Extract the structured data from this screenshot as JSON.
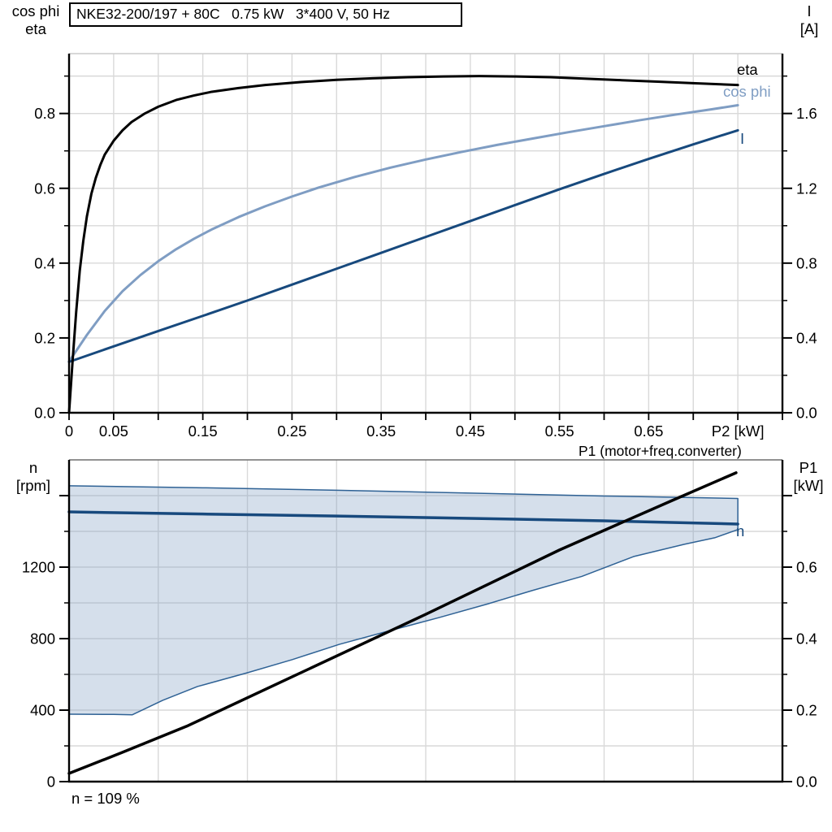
{
  "title_box": "NKE32-200/197 + 80C   0.75 kW   3*400 V, 50 Hz",
  "labels": {
    "top_left_line1": "cos phi",
    "top_left_line2": "eta",
    "top_right_line1": "I",
    "top_right_line2": "[A]",
    "bottom_left_line1": "n",
    "bottom_left_line2": "[rpm]",
    "bottom_right_line1": "P1",
    "bottom_right_line2": "[kW]",
    "p1_curve_title": "P1 (motor+freq.converter)",
    "speed_note": "n = 109 %",
    "curve_eta": "eta",
    "curve_cos_phi": "cos phi",
    "curve_current": "I",
    "curve_speed": "n"
  },
  "colors": {
    "eta_curve": "#000000",
    "cos_phi_curve": "#7f9dc3",
    "current_curve": "#17497d",
    "speed_curve": "#17497d",
    "p1_curve": "#000000",
    "envelope_stroke": "#2f6295",
    "envelope_fill": "#7d9cc0",
    "grid": "#d9d9d9",
    "axis": "#000000"
  },
  "chart_data": [
    {
      "id": "top-chart",
      "type": "line",
      "title": "NKE32-200/197 + 80C  0.75 kW  3*400 V, 50 Hz",
      "x_axis": {
        "label": "P2 [kW]",
        "range": [
          0,
          0.8
        ],
        "grid": [
          0.05,
          0.1,
          0.15,
          0.2,
          0.25,
          0.3,
          0.35,
          0.4,
          0.45,
          0.5,
          0.55,
          0.6,
          0.65,
          0.7,
          0.75
        ],
        "ticks": [
          0,
          0.05,
          0.1,
          0.15,
          0.2,
          0.25,
          0.3,
          0.35,
          0.4,
          0.45,
          0.5,
          0.55,
          0.6,
          0.65,
          0.7,
          0.75,
          0.8
        ],
        "tick_labels": [
          {
            "v": 0,
            "l": "0"
          },
          {
            "v": 0.05,
            "l": "0.05"
          },
          {
            "v": 0.15,
            "l": "0.15"
          },
          {
            "v": 0.25,
            "l": "0.25"
          },
          {
            "v": 0.35,
            "l": "0.35"
          },
          {
            "v": 0.45,
            "l": "0.45"
          },
          {
            "v": 0.55,
            "l": "0.55"
          },
          {
            "v": 0.65,
            "l": "0.65"
          },
          {
            "v": 0.75,
            "l": "P2 [kW]"
          }
        ]
      },
      "y_left": {
        "title": "cos phi / eta",
        "range": [
          0,
          0.96
        ],
        "grid": [
          0.1,
          0.2,
          0.3,
          0.4,
          0.5,
          0.6,
          0.7,
          0.8,
          0.9
        ],
        "major_ticks": [
          {
            "v": 0,
            "l": "0.0"
          },
          {
            "v": 0.2,
            "l": "0.2"
          },
          {
            "v": 0.4,
            "l": "0.4"
          },
          {
            "v": 0.6,
            "l": "0.6"
          },
          {
            "v": 0.8,
            "l": "0.8"
          }
        ],
        "minor_ticks": [
          0.1,
          0.3,
          0.5,
          0.7,
          0.9
        ]
      },
      "y_right": {
        "title": "I [A]",
        "range": [
          0,
          1.92
        ],
        "major_ticks": [
          {
            "v": 0,
            "l": "0.0"
          },
          {
            "v": 0.4,
            "l": "0.4"
          },
          {
            "v": 0.8,
            "l": "0.8"
          },
          {
            "v": 1.2,
            "l": "1.2"
          },
          {
            "v": 1.6,
            "l": "1.6"
          }
        ],
        "minor_ticks": [
          0.2,
          0.6,
          1.0,
          1.4,
          1.8
        ]
      },
      "series": [
        {
          "name": "cos-phi",
          "axis": "left",
          "color_key": "cos_phi_curve",
          "width": 3,
          "points": [
            [
              0,
              0.137
            ],
            [
              0.02,
              0.208
            ],
            [
              0.04,
              0.272
            ],
            [
              0.06,
              0.325
            ],
            [
              0.08,
              0.368
            ],
            [
              0.1,
              0.405
            ],
            [
              0.12,
              0.437
            ],
            [
              0.14,
              0.465
            ],
            [
              0.16,
              0.49
            ],
            [
              0.19,
              0.523
            ],
            [
              0.22,
              0.552
            ],
            [
              0.25,
              0.578
            ],
            [
              0.28,
              0.602
            ],
            [
              0.32,
              0.63
            ],
            [
              0.36,
              0.655
            ],
            [
              0.4,
              0.677
            ],
            [
              0.44,
              0.697
            ],
            [
              0.48,
              0.716
            ],
            [
              0.52,
              0.733
            ],
            [
              0.56,
              0.75
            ],
            [
              0.6,
              0.766
            ],
            [
              0.64,
              0.782
            ],
            [
              0.68,
              0.797
            ],
            [
              0.72,
              0.811
            ],
            [
              0.75,
              0.822
            ]
          ]
        },
        {
          "name": "current",
          "axis": "right",
          "color_key": "current_curve",
          "width": 3,
          "points": [
            [
              0,
              0.272
            ],
            [
              0.05,
              0.355
            ],
            [
              0.1,
              0.437
            ],
            [
              0.15,
              0.518
            ],
            [
              0.2,
              0.6
            ],
            [
              0.25,
              0.685
            ],
            [
              0.3,
              0.77
            ],
            [
              0.35,
              0.855
            ],
            [
              0.4,
              0.94
            ],
            [
              0.45,
              1.025
            ],
            [
              0.5,
              1.11
            ],
            [
              0.55,
              1.195
            ],
            [
              0.6,
              1.277
            ],
            [
              0.65,
              1.357
            ],
            [
              0.7,
              1.435
            ],
            [
              0.75,
              1.51
            ]
          ]
        },
        {
          "name": "eta",
          "axis": "left",
          "color_key": "eta_curve",
          "width": 3,
          "points": [
            [
              0,
              0
            ],
            [
              0.004,
              0.14
            ],
            [
              0.008,
              0.27
            ],
            [
              0.012,
              0.38
            ],
            [
              0.016,
              0.46
            ],
            [
              0.02,
              0.525
            ],
            [
              0.025,
              0.585
            ],
            [
              0.03,
              0.628
            ],
            [
              0.035,
              0.662
            ],
            [
              0.04,
              0.69
            ],
            [
              0.05,
              0.727
            ],
            [
              0.06,
              0.755
            ],
            [
              0.07,
              0.777
            ],
            [
              0.085,
              0.8
            ],
            [
              0.1,
              0.818
            ],
            [
              0.12,
              0.836
            ],
            [
              0.14,
              0.848
            ],
            [
              0.16,
              0.858
            ],
            [
              0.19,
              0.868
            ],
            [
              0.22,
              0.876
            ],
            [
              0.26,
              0.884
            ],
            [
              0.3,
              0.89
            ],
            [
              0.34,
              0.894
            ],
            [
              0.38,
              0.897
            ],
            [
              0.42,
              0.899
            ],
            [
              0.46,
              0.9
            ],
            [
              0.5,
              0.899
            ],
            [
              0.54,
              0.897
            ],
            [
              0.58,
              0.893
            ],
            [
              0.62,
              0.889
            ],
            [
              0.66,
              0.885
            ],
            [
              0.7,
              0.881
            ],
            [
              0.75,
              0.876
            ]
          ]
        }
      ]
    },
    {
      "id": "bottom-chart",
      "type": "line",
      "title": "Speed range and input power",
      "x_axis": {
        "label": "",
        "range": [
          0,
          0.8
        ],
        "grid": [
          0.1,
          0.2,
          0.3,
          0.4,
          0.5,
          0.6,
          0.7
        ],
        "ticks": [],
        "tick_labels": []
      },
      "y_left": {
        "title": "n [rpm]",
        "range": [
          0,
          1800
        ],
        "grid": [
          200,
          400,
          600,
          800,
          1000,
          1200,
          1400,
          1600
        ],
        "major_ticks": [
          {
            "v": 0,
            "l": "0"
          },
          {
            "v": 400,
            "l": "400"
          },
          {
            "v": 800,
            "l": "800"
          },
          {
            "v": 1200,
            "l": "1200"
          },
          {
            "v": 1600,
            "l": ""
          }
        ],
        "minor_ticks": [
          200,
          600,
          1000,
          1400
        ]
      },
      "y_right": {
        "title": "P1 [kW]",
        "range": [
          0,
          0.9
        ],
        "major_ticks": [
          {
            "v": 0,
            "l": "0.0"
          },
          {
            "v": 0.2,
            "l": "0.2"
          },
          {
            "v": 0.4,
            "l": "0.4"
          },
          {
            "v": 0.6,
            "l": "0.6"
          },
          {
            "v": 0.8,
            "l": ""
          }
        ],
        "minor_ticks": [
          0.1,
          0.3,
          0.5,
          0.7
        ]
      },
      "envelope": {
        "name": "speed-operating-range",
        "axis": "left",
        "upper": [
          [
            0,
            1655
          ],
          [
            0.15,
            1644
          ],
          [
            0.3,
            1630
          ],
          [
            0.45,
            1614
          ],
          [
            0.6,
            1598
          ],
          [
            0.75,
            1584
          ]
        ],
        "lower": [
          [
            0,
            377
          ],
          [
            0.05,
            376
          ],
          [
            0.071,
            374
          ],
          [
            0.105,
            455
          ],
          [
            0.144,
            532
          ],
          [
            0.2,
            609
          ],
          [
            0.25,
            682
          ],
          [
            0.303,
            768
          ],
          [
            0.357,
            841
          ],
          [
            0.415,
            918
          ],
          [
            0.47,
            995
          ],
          [
            0.52,
            1070
          ],
          [
            0.575,
            1148
          ],
          [
            0.633,
            1259
          ],
          [
            0.69,
            1328
          ],
          [
            0.724,
            1364
          ],
          [
            0.75,
            1410
          ]
        ]
      },
      "series": [
        {
          "name": "speed",
          "axis": "left",
          "color_key": "speed_curve",
          "width": 3.5,
          "points": [
            [
              0,
              1509
            ],
            [
              0.15,
              1497
            ],
            [
              0.3,
              1486
            ],
            [
              0.45,
              1473
            ],
            [
              0.6,
              1459
            ],
            [
              0.75,
              1441
            ]
          ]
        },
        {
          "name": "p1",
          "axis": "right",
          "color_key": "p1_curve",
          "width": 3.5,
          "points": [
            [
              0,
              0.023
            ],
            [
              0.06,
              0.082
            ],
            [
              0.132,
              0.155
            ],
            [
              0.25,
              0.293
            ],
            [
              0.4,
              0.468
            ],
            [
              0.55,
              0.648
            ],
            [
              0.675,
              0.785
            ],
            [
              0.748,
              0.864
            ]
          ]
        }
      ]
    }
  ]
}
